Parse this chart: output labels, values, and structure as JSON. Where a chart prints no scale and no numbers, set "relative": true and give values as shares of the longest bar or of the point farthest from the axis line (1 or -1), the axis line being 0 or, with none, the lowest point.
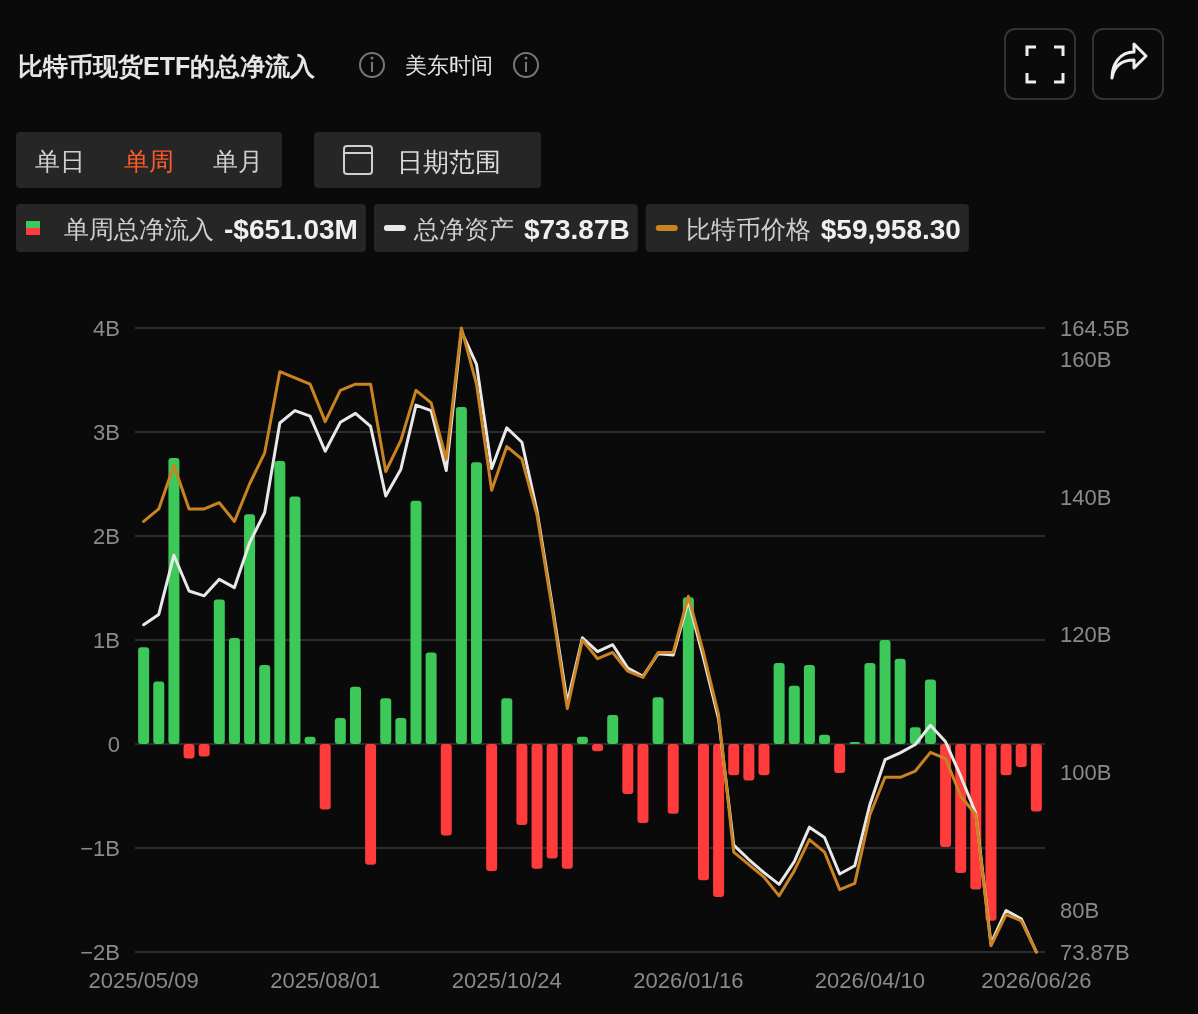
{
  "chart_data": [
    {
      "type": "bar",
      "title": "比特币现货ETF的总净流入",
      "subtitle": "美东时间",
      "x": [
        "2025-05-09",
        "2025-05-16",
        "2025-05-23",
        "2025-05-30",
        "2025-06-06",
        "2025-06-13",
        "2025-06-20",
        "2025-06-27",
        "2025-07-04",
        "2025-07-11",
        "2025-07-18",
        "2025-07-25",
        "2025-08-01",
        "2025-08-08",
        "2025-08-15",
        "2025-08-22",
        "2025-08-29",
        "2025-09-05",
        "2025-09-12",
        "2025-09-19",
        "2025-09-26",
        "2025-10-03",
        "2025-10-10",
        "2025-10-17",
        "2025-10-24",
        "2025-10-31",
        "2025-11-07",
        "2025-11-14",
        "2025-11-21",
        "2025-11-28",
        "2025-12-05",
        "2025-12-12",
        "2025-12-19",
        "2025-12-26",
        "2026-01-02",
        "2026-01-09",
        "2026-01-16",
        "2026-01-23",
        "2026-01-30",
        "2026-02-06",
        "2026-02-13",
        "2026-02-20",
        "2026-02-27",
        "2026-03-06",
        "2026-03-13",
        "2026-03-20",
        "2026-03-27",
        "2026-04-03",
        "2026-04-10",
        "2026-04-17",
        "2026-04-24",
        "2026-05-01",
        "2026-05-08",
        "2026-05-15",
        "2026-05-22",
        "2026-05-29",
        "2026-06-05",
        "2026-06-12",
        "2026-06-19",
        "2026-06-26"
      ],
      "series": [
        {
          "name": "单周总净流入",
          "values": [
            0.93,
            0.6,
            2.75,
            -0.14,
            -0.12,
            1.39,
            1.02,
            2.21,
            0.76,
            2.72,
            2.38,
            0.07,
            -0.63,
            0.25,
            0.55,
            -1.16,
            0.44,
            0.25,
            2.34,
            0.88,
            -0.88,
            3.24,
            2.71,
            -1.22,
            0.44,
            -0.78,
            -1.2,
            -1.1,
            -1.2,
            0.07,
            -0.07,
            0.28,
            -0.48,
            -0.76,
            0.45,
            -0.67,
            1.41,
            -1.31,
            -1.47,
            -0.3,
            -0.35,
            -0.3,
            0.78,
            0.56,
            0.76,
            0.09,
            -0.28,
            0.02,
            0.78,
            1.0,
            0.82,
            0.16,
            0.62,
            -0.99,
            -1.24,
            -1.4,
            -1.7,
            -0.3,
            -0.22,
            -0.65
          ],
          "colors": [
            "#3cc95a",
            "#3cc95a",
            "#3cc95a",
            "#ff3b3b",
            "#ff3b3b",
            "#3cc95a",
            "#3cc95a",
            "#3cc95a",
            "#3cc95a",
            "#3cc95a",
            "#3cc95a",
            "#3cc95a",
            "#ff3b3b",
            "#3cc95a",
            "#3cc95a",
            "#ff3b3b",
            "#3cc95a",
            "#3cc95a",
            "#3cc95a",
            "#3cc95a",
            "#ff3b3b",
            "#3cc95a",
            "#3cc95a",
            "#ff3b3b",
            "#3cc95a",
            "#ff3b3b",
            "#ff3b3b",
            "#ff3b3b",
            "#ff3b3b",
            "#3cc95a",
            "#ff3b3b",
            "#3cc95a",
            "#ff3b3b",
            "#ff3b3b",
            "#3cc95a",
            "#ff3b3b",
            "#3cc95a",
            "#ff3b3b",
            "#ff3b3b",
            "#ff3b3b",
            "#ff3b3b",
            "#ff3b3b",
            "#3cc95a",
            "#3cc95a",
            "#3cc95a",
            "#3cc95a",
            "#ff3b3b",
            "#3cc95a",
            "#3cc95a",
            "#3cc95a",
            "#3cc95a",
            "#3cc95a",
            "#3cc95a",
            "#ff3b3b",
            "#ff3b3b",
            "#ff3b3b",
            "#ff3b3b",
            "#ff3b3b",
            "#ff3b3b",
            "#ff3b3b"
          ]
        },
        {
          "name": "总净资产",
          "type": "line",
          "axis": "y2",
          "color": "#e8e8e8",
          "values": [
            121.4,
            122.9,
            131.5,
            126.3,
            125.6,
            128.0,
            126.8,
            133.3,
            137.7,
            150.7,
            152.5,
            151.7,
            146.6,
            150.8,
            152.1,
            150.2,
            140.1,
            144.0,
            153.3,
            152.5,
            143.8,
            164.0,
            159.2,
            144.1,
            150.0,
            147.9,
            137.9,
            124.3,
            110.1,
            119.5,
            117.5,
            118.5,
            115.1,
            113.9,
            117.2,
            117.0,
            124.9,
            116.6,
            107.7,
            89.4,
            87.3,
            85.4,
            83.7,
            87.0,
            92.0,
            90.5,
            85.2,
            86.4,
            95.3,
            101.8,
            102.8,
            104.0,
            106.8,
            104.4,
            99.4,
            94.0,
            75.1,
            79.9,
            78.7,
            73.87
          ]
        }
      ],
      "xlim": [
        "2025-05-05",
        "2026-06-30"
      ],
      "xticks": [
        {
          "value": "2025-05-09",
          "label": "2025/05/09"
        },
        {
          "value": "2025-08-01",
          "label": "2025/08/01"
        },
        {
          "value": "2025-10-24",
          "label": "2025/10/24"
        },
        {
          "value": "2026-01-16",
          "label": "2026/01/16"
        },
        {
          "value": "2026-04-10",
          "label": "2026/04/10"
        },
        {
          "value": "2026-06-26",
          "label": "2026/06/26"
        }
      ],
      "ylim": [
        -2,
        4
      ],
      "yticks": [
        {
          "value": -2,
          "label": "−2B"
        },
        {
          "value": -1,
          "label": "−1B"
        },
        {
          "value": 0,
          "label": "0"
        },
        {
          "value": 1,
          "label": "1B"
        },
        {
          "value": 2,
          "label": "2B"
        },
        {
          "value": 3,
          "label": "3B"
        },
        {
          "value": 4,
          "label": "4B"
        }
      ],
      "y2lim": [
        73.87,
        164.5
      ],
      "y2ticks": [
        {
          "value": 73.87,
          "label": "73.87B"
        },
        {
          "value": 80,
          "label": "80B"
        },
        {
          "value": 100,
          "label": "100B"
        },
        {
          "value": 120,
          "label": "120B"
        },
        {
          "value": 140,
          "label": "140B"
        },
        {
          "value": 160,
          "label": "160B"
        },
        {
          "value": 164.5,
          "label": "164.5B"
        }
      ],
      "grid": "y",
      "legend": "top left",
      "annotations": [
        "-$651.03M",
        "$73.87B",
        "单日",
        "单周",
        "单月",
        "日期范围"
      ]
    },
    {
      "type": "line",
      "relative": true,
      "x": [
        "2025-05-09",
        "2025-05-16",
        "2025-05-23",
        "2025-05-30",
        "2025-06-06",
        "2025-06-13",
        "2025-06-20",
        "2025-06-27",
        "2025-07-04",
        "2025-07-11",
        "2025-07-18",
        "2025-07-25",
        "2025-08-01",
        "2025-08-08",
        "2025-08-15",
        "2025-08-22",
        "2025-08-29",
        "2025-09-05",
        "2025-09-12",
        "2025-09-19",
        "2025-09-26",
        "2025-10-03",
        "2025-10-10",
        "2025-10-17",
        "2025-10-24",
        "2025-10-31",
        "2025-11-07",
        "2025-11-14",
        "2025-11-21",
        "2025-11-28",
        "2025-12-05",
        "2025-12-12",
        "2025-12-19",
        "2025-12-26",
        "2026-01-02",
        "2026-01-09",
        "2026-01-16",
        "2026-01-23",
        "2026-01-30",
        "2026-02-06",
        "2026-02-13",
        "2026-02-20",
        "2026-02-27",
        "2026-03-06",
        "2026-03-13",
        "2026-03-20",
        "2026-03-27",
        "2026-04-03",
        "2026-04-10",
        "2026-04-17",
        "2026-04-24",
        "2026-05-01",
        "2026-05-08",
        "2026-05-15",
        "2026-05-22",
        "2026-05-29",
        "2026-06-05",
        "2026-06-12",
        "2026-06-19",
        "2026-06-26"
      ],
      "series": [
        {
          "name": "比特币价格",
          "color": "#c98321",
          "values": [
            0.69,
            0.71,
            0.78,
            0.71,
            0.71,
            0.72,
            0.69,
            0.75,
            0.8,
            0.93,
            0.92,
            0.91,
            0.85,
            0.9,
            0.91,
            0.91,
            0.77,
            0.82,
            0.9,
            0.88,
            0.79,
            1.0,
            0.91,
            0.74,
            0.81,
            0.79,
            0.7,
            0.55,
            0.39,
            0.5,
            0.47,
            0.48,
            0.45,
            0.44,
            0.48,
            0.48,
            0.57,
            0.48,
            0.38,
            0.16,
            0.14,
            0.12,
            0.09,
            0.13,
            0.18,
            0.16,
            0.1,
            0.11,
            0.22,
            0.28,
            0.28,
            0.29,
            0.32,
            0.31,
            0.25,
            0.22,
            0.01,
            0.06,
            0.05,
            0.0
          ]
        }
      ],
      "xlim": [
        "2025-05-05",
        "2026-06-30"
      ],
      "tick_labels": false,
      "legend": "top right",
      "annotations": [
        "$59,958.30"
      ]
    }
  ]
}
